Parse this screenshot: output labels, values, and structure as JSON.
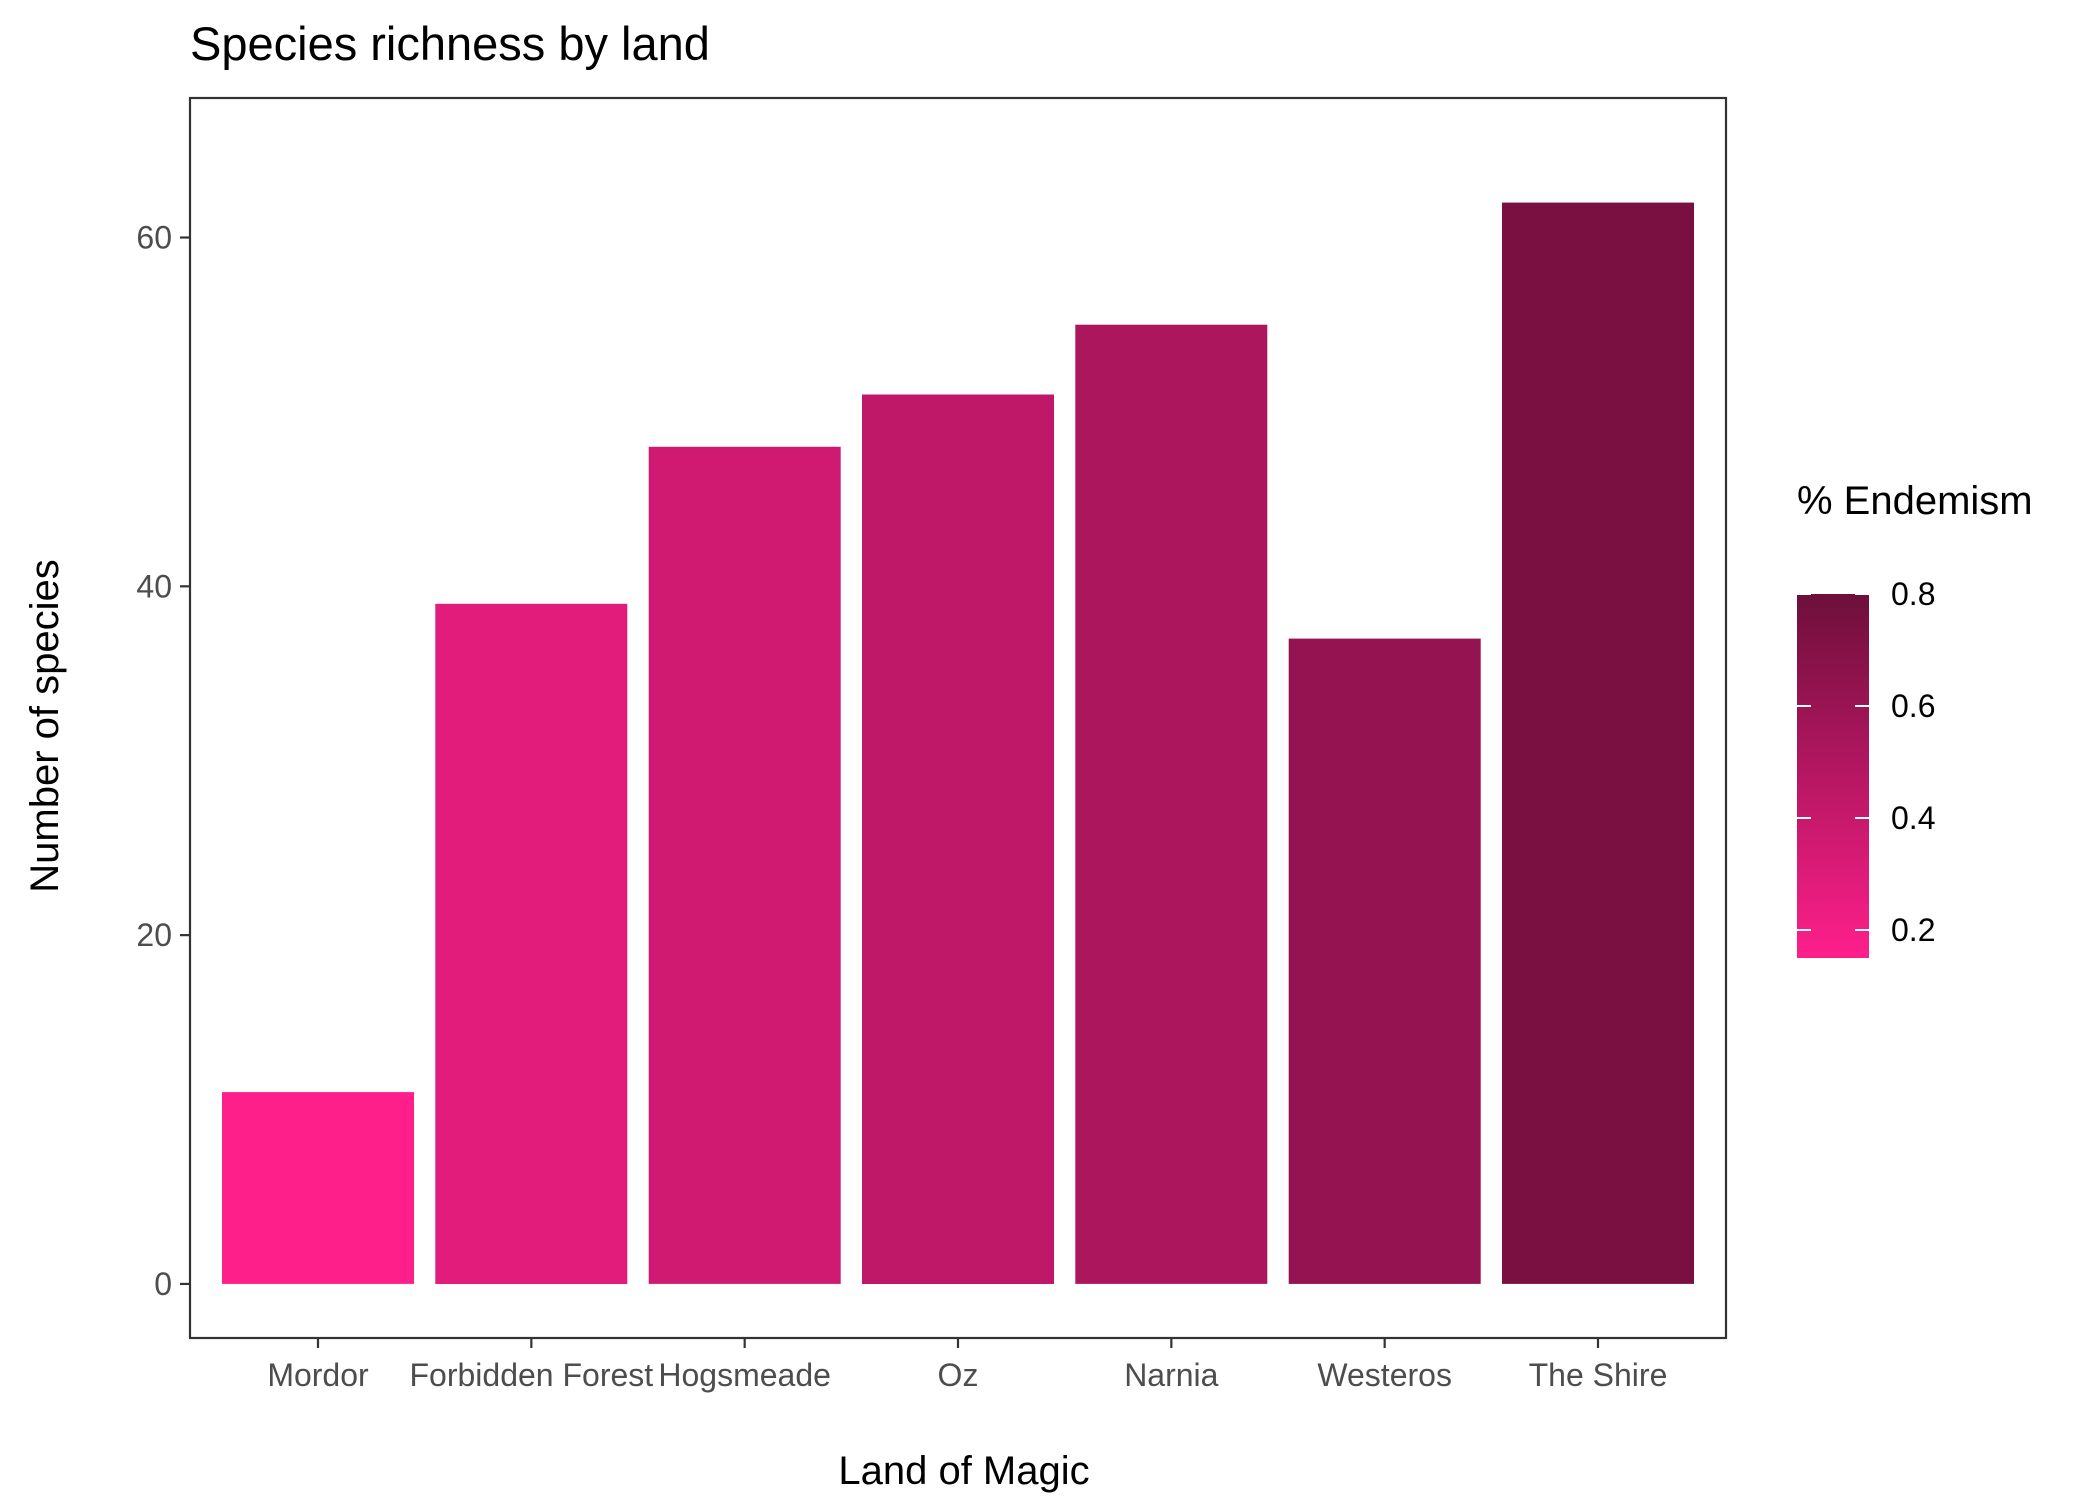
{
  "chart_data": {
    "type": "bar",
    "title": "Species richness by land",
    "xlabel": "Land of Magic",
    "ylabel": "Number of species",
    "categories": [
      "Mordor",
      "Forbidden Forest",
      "Hogsmeade",
      "Oz",
      "Narnia",
      "Westeros",
      "The Shire"
    ],
    "values": [
      11,
      39,
      48,
      51,
      55,
      37,
      62
    ],
    "fill_values": [
      0.15,
      0.28,
      0.36,
      0.43,
      0.52,
      0.62,
      0.74
    ],
    "ylim": [
      -3.1,
      68
    ],
    "yticks": [
      0,
      20,
      40,
      60
    ],
    "grid": false,
    "legend": {
      "title": "% Endemism",
      "position": "right",
      "type": "colorbar",
      "range": [
        0.15,
        0.8
      ],
      "ticks": [
        0.2,
        0.4,
        0.6,
        0.8
      ],
      "color_low": "#ff1f8b",
      "color_high": "#6d0f3a"
    }
  }
}
